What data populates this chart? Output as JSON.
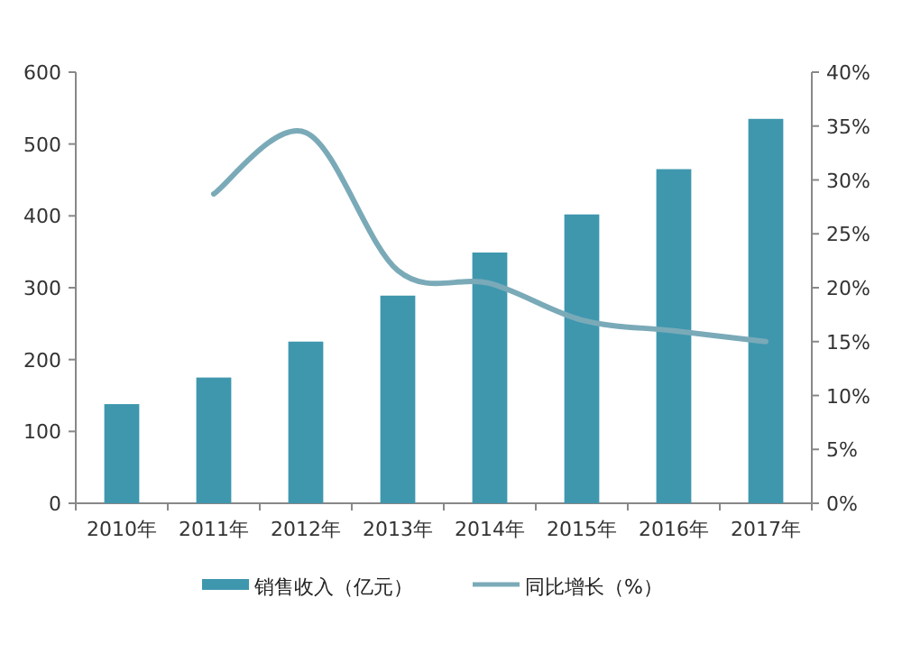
{
  "chart_data": {
    "type": "bar",
    "categories": [
      "2010年",
      "2011年",
      "2012年",
      "2013年",
      "2014年",
      "2015年",
      "2016年",
      "2017年"
    ],
    "series": [
      {
        "name": "销售收入（亿元）",
        "color": "#3f97ae",
        "values": [
          138,
          175,
          225,
          289,
          349,
          402,
          465,
          535
        ]
      },
      {
        "name": "同比增长（%）",
        "type": "line",
        "axis": "y2",
        "color": "#7aaab8",
        "values": [
          null,
          28.7,
          34.4,
          21.6,
          20.4,
          17,
          16,
          15
        ]
      }
    ],
    "ylim": [
      0,
      600
    ],
    "yticks": [
      0,
      100,
      200,
      300,
      400,
      500,
      600
    ],
    "y2lim": [
      0,
      40
    ],
    "y2ticks": [
      {
        "value": 0,
        "label": "0%"
      },
      {
        "value": 5,
        "label": "5%"
      },
      {
        "value": 10,
        "label": "10%"
      },
      {
        "value": 15,
        "label": "15%"
      },
      {
        "value": 20,
        "label": "20%"
      },
      {
        "value": 25,
        "label": "25%"
      },
      {
        "value": 30,
        "label": "30%"
      },
      {
        "value": 35,
        "label": "35%"
      },
      {
        "value": 40,
        "label": "40%"
      }
    ],
    "grid": false,
    "legend": "bottom"
  }
}
